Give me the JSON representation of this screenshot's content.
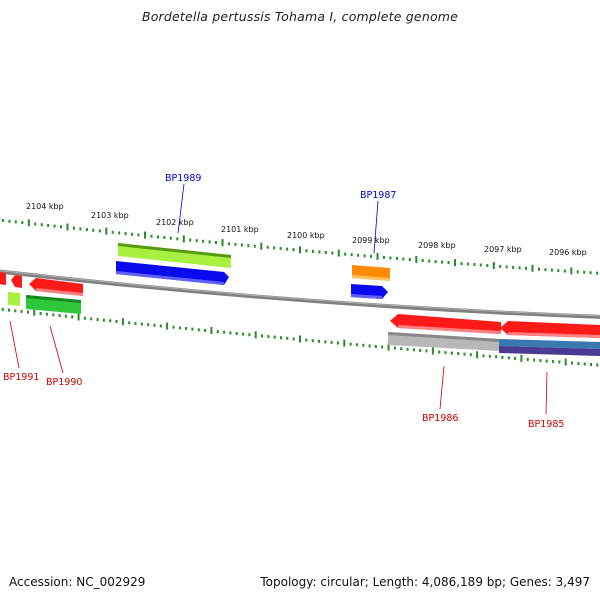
{
  "title": "Bordetella pertussis Tohama I, complete genome",
  "footer": {
    "accession": "Accession: NC_002929",
    "summary": "Topology: circular; Length: 4,086,189 bp; Genes: 3,497"
  },
  "colors": {
    "backbone": "#808080",
    "tick": "#2a8a2a",
    "label_forward": "#0000cc",
    "label_reverse": "#cc0000",
    "red": "#ff1a1a",
    "blue": "#0a0aee",
    "lime": "#a8f040",
    "green": "#2ec83a",
    "orange": "#ff8c00",
    "grey": "#b8b8b8",
    "steel": "#3a78b0",
    "purple": "#4a3a90"
  },
  "scale_labels": [
    "2104 kbp",
    "2103 kbp",
    "2102 kbp",
    "2101 kbp",
    "2100 kbp",
    "2099 kbp",
    "2098 kbp",
    "2097 kbp",
    "2096 kbp"
  ],
  "gene_labels": [
    {
      "name": "BP1989",
      "strand": "forward"
    },
    {
      "name": "BP1987",
      "strand": "forward"
    },
    {
      "name": "BP1991",
      "strand": "reverse"
    },
    {
      "name": "BP1990",
      "strand": "reverse"
    },
    {
      "name": "BP1986",
      "strand": "reverse"
    },
    {
      "name": "BP1985",
      "strand": "reverse"
    }
  ]
}
